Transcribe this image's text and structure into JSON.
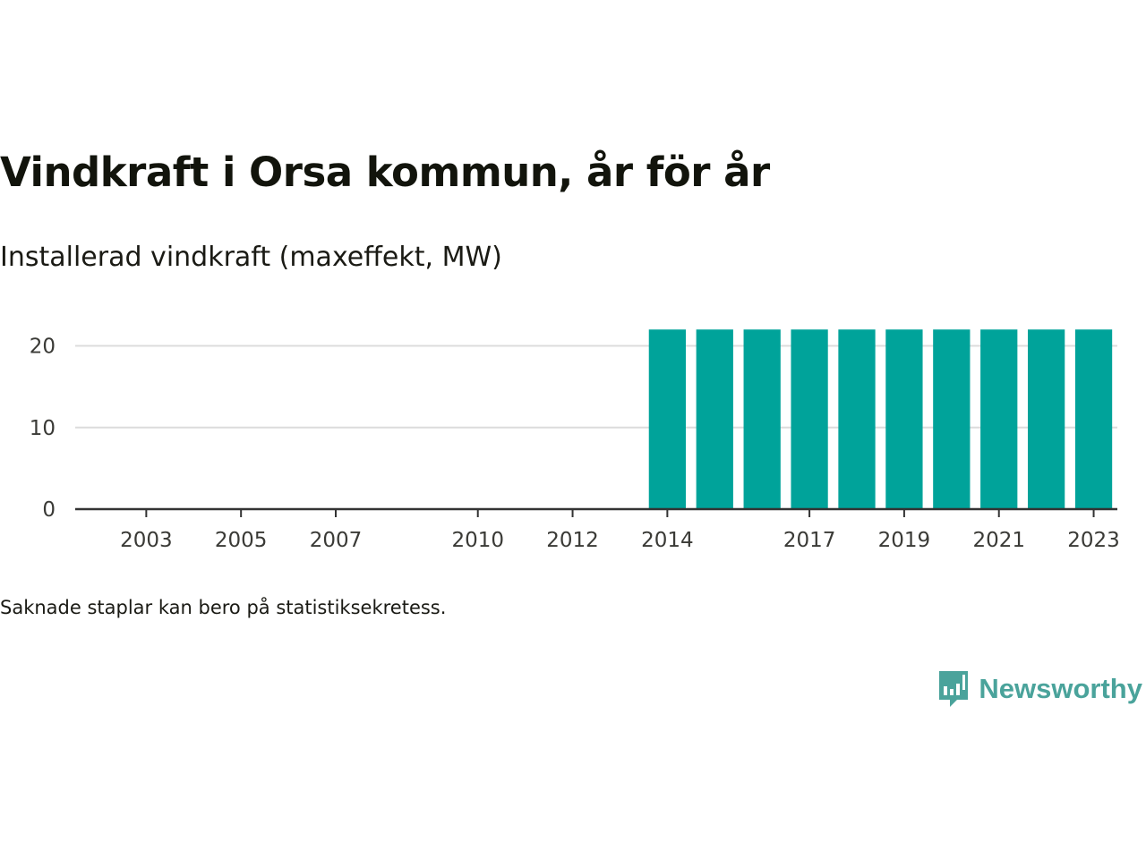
{
  "title": "Vindkraft i Orsa kommun, år för år",
  "subtitle": "Installerad vindkraft (maxeffekt, MW)",
  "note": "Saknade staplar kan bero på statistiksekretess.",
  "brand": {
    "name": "Newsworthy",
    "color": "#4aa39b",
    "icon": "newsworthy-chart-bubble-icon"
  },
  "chart_data": {
    "type": "bar",
    "categories": [
      "2002",
      "2003",
      "2004",
      "2005",
      "2006",
      "2007",
      "2008",
      "2009",
      "2010",
      "2011",
      "2012",
      "2013",
      "2014",
      "2015",
      "2016",
      "2017",
      "2018",
      "2019",
      "2020",
      "2021",
      "2022",
      "2023"
    ],
    "values": [
      null,
      null,
      null,
      null,
      null,
      null,
      null,
      null,
      null,
      null,
      null,
      null,
      22,
      22,
      22,
      22,
      22,
      22,
      22,
      22,
      22,
      22
    ],
    "x_tick_labels": [
      "2003",
      "2005",
      "2007",
      "2010",
      "2012",
      "2014",
      "2017",
      "2019",
      "2021",
      "2023"
    ],
    "y_ticks": [
      0,
      10,
      20
    ],
    "ylim": [
      0,
      24
    ],
    "bar_color": "#00a39a",
    "grid": true
  }
}
